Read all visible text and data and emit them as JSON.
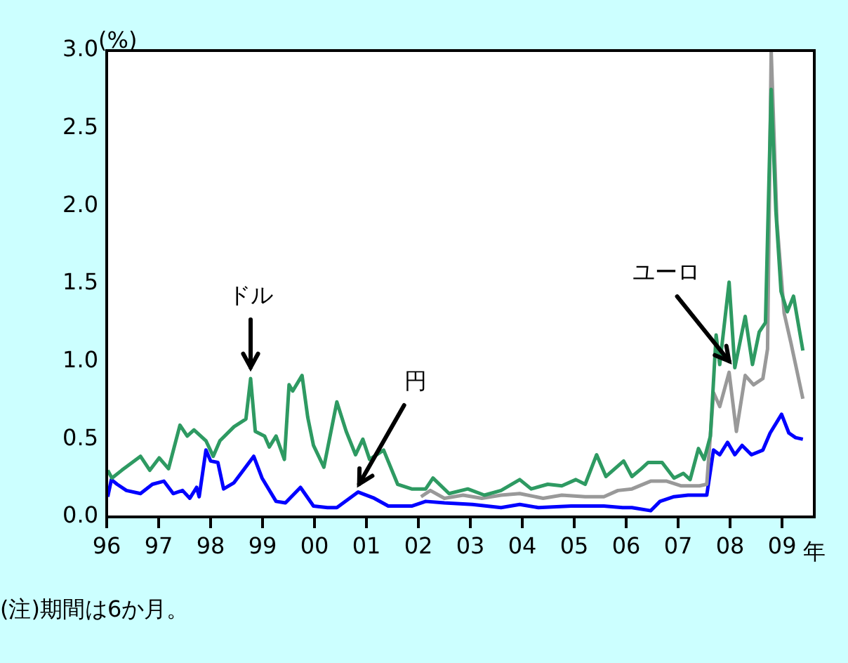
{
  "chart_data": {
    "type": "line",
    "ylabel": "(%)",
    "xlabel": "年",
    "xlim": [
      1996,
      2009.62
    ],
    "ylim": [
      0,
      3.0
    ],
    "xticks": [
      {
        "value": 1996,
        "label": "96"
      },
      {
        "value": 1997,
        "label": "97"
      },
      {
        "value": 1998,
        "label": "98"
      },
      {
        "value": 1999,
        "label": "99"
      },
      {
        "value": 2000,
        "label": "00"
      },
      {
        "value": 2001,
        "label": "01"
      },
      {
        "value": 2002,
        "label": "02"
      },
      {
        "value": 2003,
        "label": "03"
      },
      {
        "value": 2004,
        "label": "04"
      },
      {
        "value": 2005,
        "label": "05"
      },
      {
        "value": 2006,
        "label": "06"
      },
      {
        "value": 2007,
        "label": "07"
      },
      {
        "value": 2008,
        "label": "08"
      },
      {
        "value": 2009,
        "label": "09"
      }
    ],
    "yticks": [
      {
        "value": 0,
        "label": "0.0"
      },
      {
        "value": 0.5,
        "label": "0.5"
      },
      {
        "value": 1,
        "label": "1.0"
      },
      {
        "value": 1.5,
        "label": "1.5"
      },
      {
        "value": 2,
        "label": "2.0"
      },
      {
        "value": 2.5,
        "label": "2.5"
      },
      {
        "value": 3,
        "label": "3.0"
      }
    ],
    "legend": false,
    "marker": "none",
    "line_style": "solid",
    "series": [
      {
        "color": "#2e9a62",
        "x": [
          1996.02,
          1996.1,
          1996.29,
          1996.65,
          1996.83,
          1997.01,
          1997.19,
          1997.41,
          1997.55,
          1997.68,
          1997.91,
          1998.05,
          1998.18,
          1998.45,
          1998.68,
          1998.77,
          1998.86,
          1999.04,
          1999.13,
          1999.26,
          1999.42,
          1999.51,
          1999.58,
          1999.76,
          1999.87,
          1999.98,
          2000.18,
          2000.43,
          2000.61,
          2000.79,
          2000.93,
          2001.06,
          2001.33,
          2001.6,
          2001.87,
          2002.14,
          2002.28,
          2002.59,
          2002.95,
          2003.27,
          2003.59,
          2003.95,
          2004.17,
          2004.49,
          2004.76,
          2005.03,
          2005.21,
          2005.43,
          2005.61,
          2005.95,
          2006.11,
          2006.29,
          2006.42,
          2006.69,
          2006.92,
          2007.1,
          2007.23,
          2007.39,
          2007.5,
          2007.62,
          2007.73,
          2007.8,
          2007.98,
          2008.09,
          2008.29,
          2008.43,
          2008.56,
          2008.68,
          2008.79,
          2008.88,
          2008.98,
          2009.1,
          2009.22,
          2009.4
        ],
        "values": [
          0.3,
          0.25,
          0.3,
          0.39,
          0.3,
          0.38,
          0.31,
          0.59,
          0.52,
          0.56,
          0.49,
          0.39,
          0.49,
          0.58,
          0.63,
          0.89,
          0.55,
          0.52,
          0.45,
          0.52,
          0.37,
          0.85,
          0.81,
          0.91,
          0.64,
          0.46,
          0.32,
          0.74,
          0.55,
          0.4,
          0.5,
          0.37,
          0.43,
          0.21,
          0.18,
          0.18,
          0.25,
          0.15,
          0.18,
          0.14,
          0.17,
          0.24,
          0.18,
          0.21,
          0.2,
          0.24,
          0.21,
          0.4,
          0.26,
          0.36,
          0.26,
          0.31,
          0.35,
          0.35,
          0.25,
          0.28,
          0.24,
          0.44,
          0.37,
          0.52,
          1.17,
          0.98,
          1.51,
          0.96,
          1.29,
          0.98,
          1.19,
          1.25,
          2.75,
          1.97,
          1.45,
          1.32,
          1.42,
          1.07
        ]
      },
      {
        "color": "#999999",
        "x": [
          2002.05,
          2002.23,
          2002.5,
          2002.86,
          2003.22,
          2003.59,
          2003.95,
          2004.4,
          2004.76,
          2005.21,
          2005.57,
          2005.84,
          2006.11,
          2006.47,
          2006.78,
          2007.05,
          2007.41,
          2007.55,
          2007.68,
          2007.8,
          2007.98,
          2008.12,
          2008.29,
          2008.45,
          2008.63,
          2008.72,
          2008.79,
          2008.9,
          2009.04,
          2009.17,
          2009.4
        ],
        "values": [
          0.13,
          0.17,
          0.12,
          0.14,
          0.12,
          0.14,
          0.15,
          0.12,
          0.14,
          0.13,
          0.13,
          0.17,
          0.18,
          0.23,
          0.23,
          0.2,
          0.2,
          0.21,
          0.8,
          0.71,
          0.93,
          0.55,
          0.91,
          0.85,
          0.89,
          1.08,
          3.0,
          1.9,
          1.31,
          1.12,
          0.76
        ]
      },
      {
        "color": "#0000ff",
        "x": [
          1996.02,
          1996.09,
          1996.2,
          1996.38,
          1996.65,
          1996.88,
          1997.1,
          1997.28,
          1997.46,
          1997.6,
          1997.73,
          1997.78,
          1997.91,
          1998.0,
          1998.14,
          1998.25,
          1998.45,
          1998.83,
          1998.99,
          1999.26,
          1999.44,
          1999.73,
          1999.98,
          2000.25,
          2000.43,
          2000.84,
          2001.15,
          2001.42,
          2001.87,
          2002.14,
          2002.5,
          2003.04,
          2003.59,
          2003.95,
          2004.31,
          2004.94,
          2005.57,
          2005.93,
          2006.11,
          2006.47,
          2006.65,
          2006.92,
          2007.19,
          2007.55,
          2007.68,
          2007.8,
          2007.95,
          2008.09,
          2008.23,
          2008.41,
          2008.63,
          2008.77,
          2008.99,
          2009.13,
          2009.26,
          2009.4
        ],
        "values": [
          0.13,
          0.24,
          0.21,
          0.17,
          0.15,
          0.21,
          0.23,
          0.15,
          0.17,
          0.12,
          0.19,
          0.13,
          0.43,
          0.36,
          0.35,
          0.18,
          0.22,
          0.39,
          0.25,
          0.1,
          0.09,
          0.19,
          0.07,
          0.06,
          0.06,
          0.16,
          0.12,
          0.07,
          0.07,
          0.1,
          0.09,
          0.08,
          0.06,
          0.08,
          0.06,
          0.07,
          0.07,
          0.06,
          0.06,
          0.04,
          0.1,
          0.13,
          0.14,
          0.14,
          0.43,
          0.4,
          0.48,
          0.4,
          0.46,
          0.4,
          0.43,
          0.54,
          0.66,
          0.54,
          0.51,
          0.5
        ]
      }
    ],
    "annotations": [
      {
        "text": "ドル",
        "x": 1998.77,
        "y": 0.89
      },
      {
        "text": "円",
        "x": 2000.86,
        "y": 0.14
      },
      {
        "text": "ユーロ",
        "x": 2007.98,
        "y": 0.93
      },
      "(注)期間は6か月。"
    ]
  }
}
